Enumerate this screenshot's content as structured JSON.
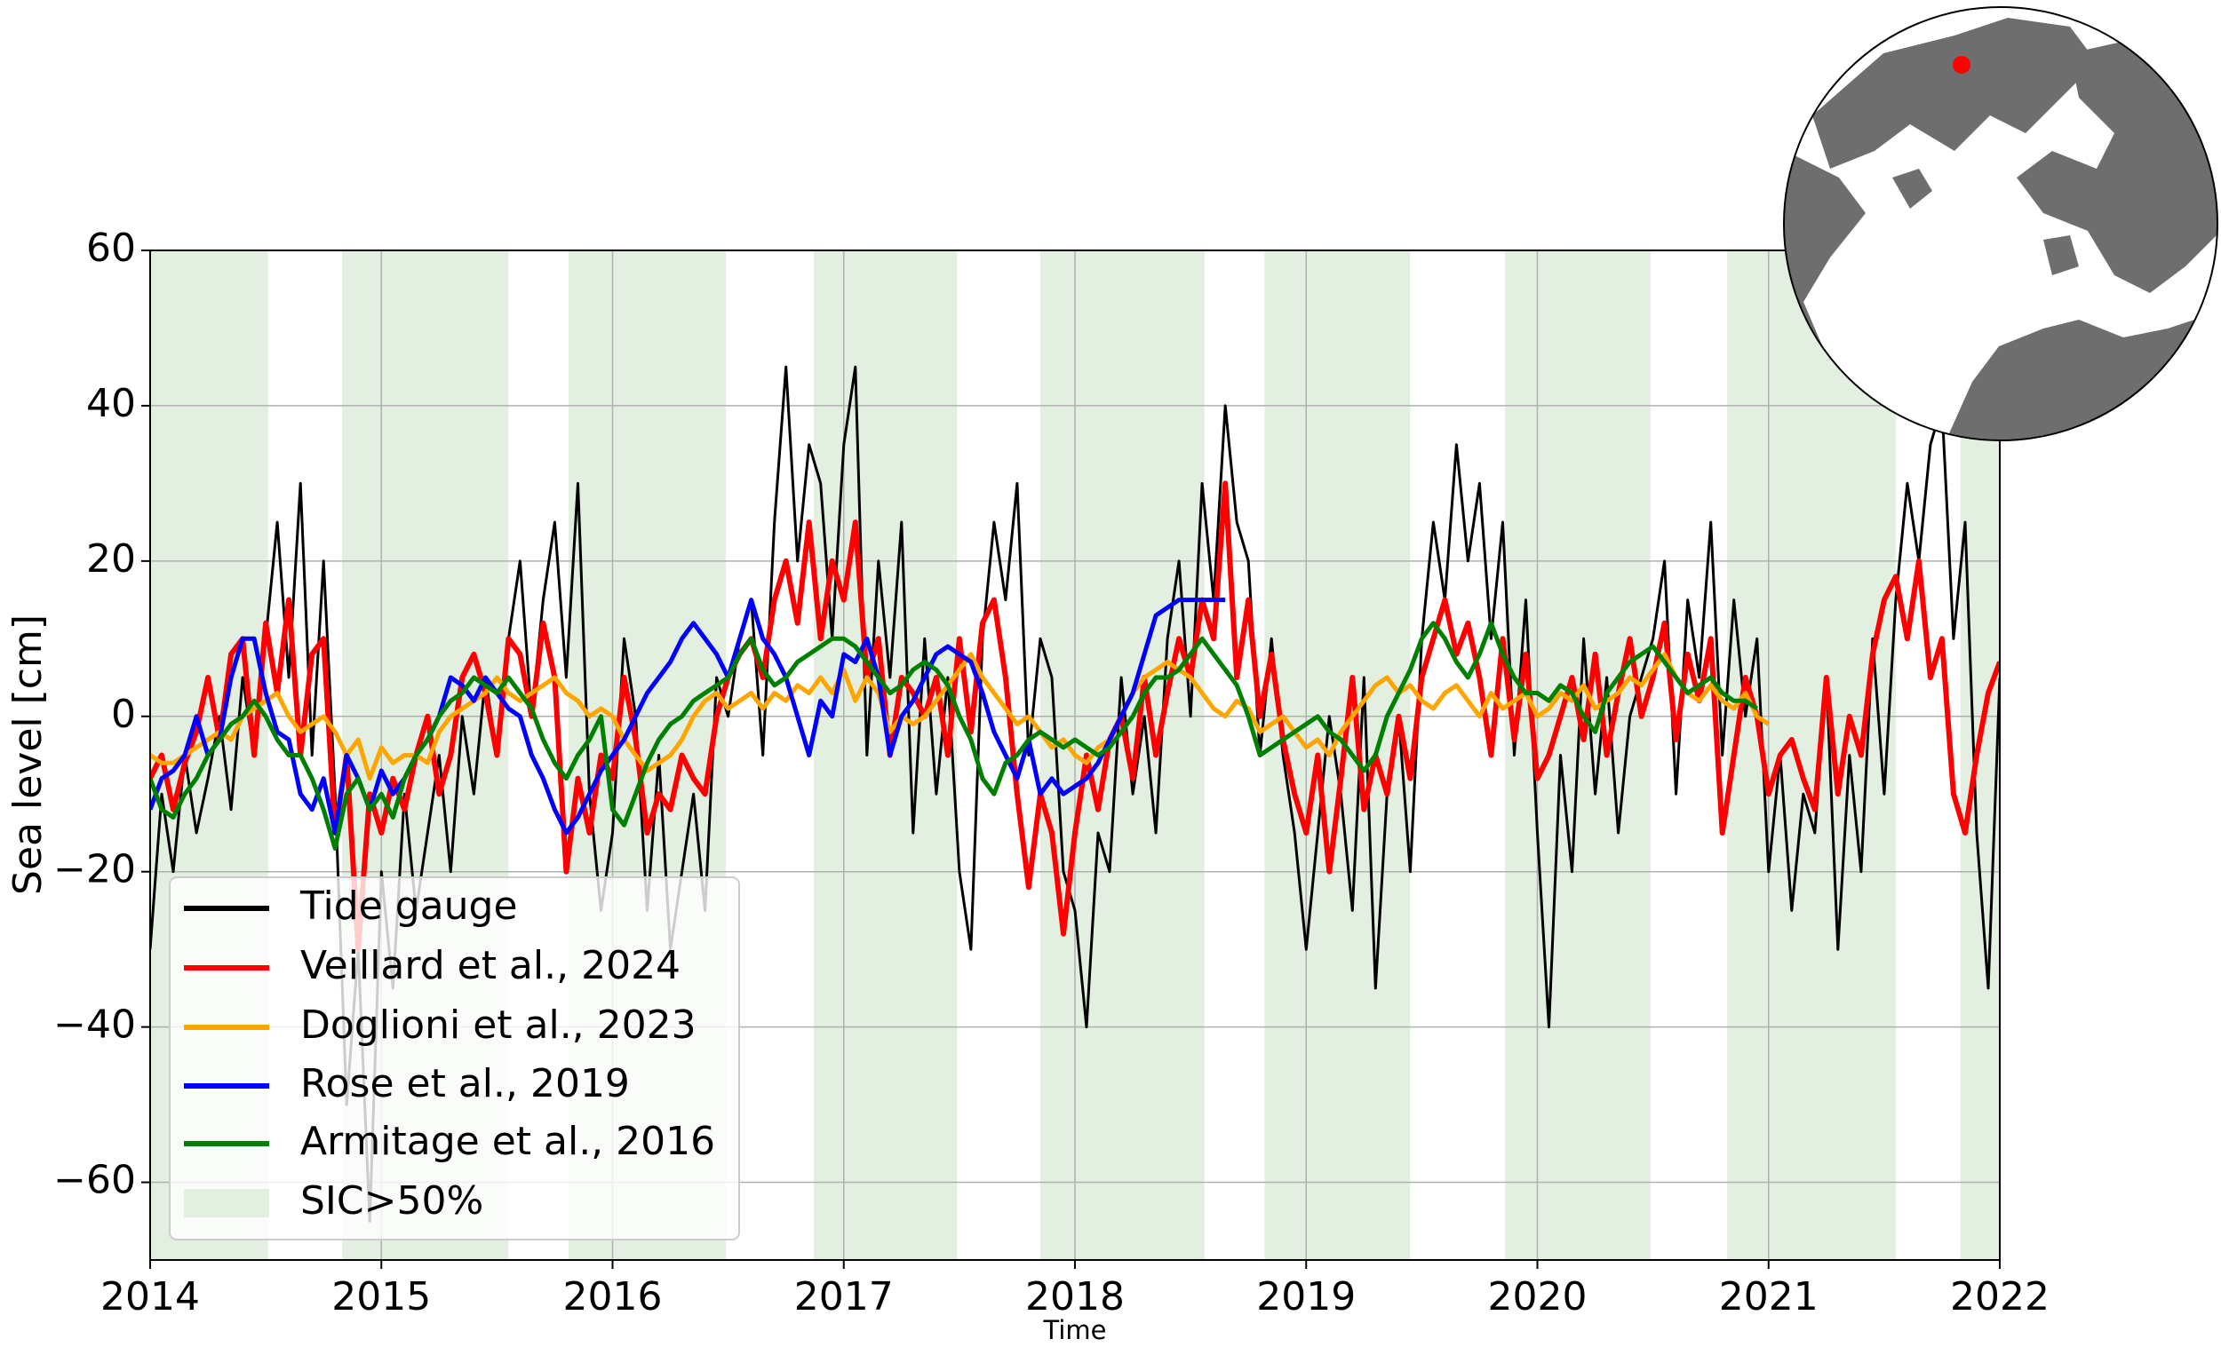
{
  "chart_data": {
    "type": "line",
    "xlabel": "Time",
    "ylabel": "Sea level [cm]",
    "xlim": [
      2014,
      2022
    ],
    "xticks": [
      2014,
      2015,
      2016,
      2017,
      2018,
      2019,
      2020,
      2021,
      2022
    ],
    "ylim": [
      -70,
      60
    ],
    "yticks": [
      {
        "value": -60,
        "label": "−60"
      },
      {
        "value": -40,
        "label": "−40"
      },
      {
        "value": -20,
        "label": "−20"
      },
      0,
      20,
      40,
      60
    ],
    "grid": true,
    "legend": "lower left",
    "shading": {
      "name": "SIC>50%",
      "color": "#e3efe0",
      "spans": [
        [
          2014,
          2014.51
        ],
        [
          2014.83,
          2015.55
        ],
        [
          2015.81,
          2016.49
        ],
        [
          2016.87,
          2017.49
        ],
        [
          2017.85,
          2018.56
        ],
        [
          2018.82,
          2019.45
        ],
        [
          2019.86,
          2020.49
        ],
        [
          2020.82,
          2021.55
        ],
        [
          2021.83,
          2022
        ]
      ]
    },
    "x": [
      2014,
      2014.05,
      2014.1,
      2014.15,
      2014.2,
      2014.25,
      2014.3,
      2014.35,
      2014.4,
      2014.45,
      2014.5,
      2014.55,
      2014.6,
      2014.65,
      2014.7,
      2014.75,
      2014.8,
      2014.85,
      2014.9,
      2014.95,
      2015,
      2015.05,
      2015.1,
      2015.15,
      2015.2,
      2015.25,
      2015.3,
      2015.35,
      2015.4,
      2015.45,
      2015.5,
      2015.55,
      2015.6,
      2015.65,
      2015.7,
      2015.75,
      2015.8,
      2015.85,
      2015.9,
      2015.95,
      2016,
      2016.05,
      2016.1,
      2016.15,
      2016.2,
      2016.25,
      2016.3,
      2016.35,
      2016.4,
      2016.45,
      2016.5,
      2016.55,
      2016.6,
      2016.65,
      2016.7,
      2016.75,
      2016.8,
      2016.85,
      2016.9,
      2016.95,
      2017,
      2017.05,
      2017.1,
      2017.15,
      2017.2,
      2017.25,
      2017.3,
      2017.35,
      2017.4,
      2017.45,
      2017.5,
      2017.55,
      2017.6,
      2017.65,
      2017.7,
      2017.75,
      2017.8,
      2017.85,
      2017.9,
      2017.95,
      2018,
      2018.05,
      2018.1,
      2018.15,
      2018.2,
      2018.25,
      2018.3,
      2018.35,
      2018.4,
      2018.45,
      2018.5,
      2018.55,
      2018.6,
      2018.65,
      2018.7,
      2018.75,
      2018.8,
      2018.85,
      2018.9,
      2018.95,
      2019,
      2019.05,
      2019.1,
      2019.15,
      2019.2,
      2019.25,
      2019.3,
      2019.35,
      2019.4,
      2019.45,
      2019.5,
      2019.55,
      2019.6,
      2019.65,
      2019.7,
      2019.75,
      2019.8,
      2019.85,
      2019.9,
      2019.95,
      2020,
      2020.05,
      2020.1,
      2020.15,
      2020.2,
      2020.25,
      2020.3,
      2020.35,
      2020.4,
      2020.45,
      2020.5,
      2020.55,
      2020.6,
      2020.65,
      2020.7,
      2020.75,
      2020.8,
      2020.85,
      2020.9,
      2020.95,
      2021,
      2021.05,
      2021.1,
      2021.15,
      2021.2,
      2021.25,
      2021.3,
      2021.35,
      2021.4,
      2021.45,
      2021.5,
      2021.55,
      2021.6,
      2021.65,
      2021.7,
      2021.75,
      2021.8,
      2021.85,
      2021.9,
      2021.95,
      2022
    ],
    "series": [
      {
        "name": "Tide gauge",
        "color": "#000000",
        "values": [
          -30,
          -10,
          -20,
          -5,
          -15,
          -8,
          0,
          -12,
          5,
          -5,
          10,
          25,
          5,
          30,
          -5,
          20,
          -10,
          -50,
          -30,
          -65,
          -20,
          -35,
          -10,
          -25,
          -15,
          -5,
          -20,
          0,
          -10,
          5,
          -5,
          10,
          20,
          0,
          15,
          25,
          5,
          30,
          -10,
          -25,
          -15,
          10,
          0,
          -25,
          -5,
          -30,
          -20,
          -10,
          -25,
          5,
          0,
          10,
          15,
          -5,
          25,
          45,
          20,
          35,
          30,
          10,
          35,
          45,
          -5,
          20,
          5,
          25,
          -15,
          10,
          -10,
          5,
          -20,
          -30,
          10,
          25,
          15,
          30,
          -5,
          10,
          5,
          -20,
          -25,
          -40,
          -15,
          -20,
          5,
          -10,
          0,
          -15,
          10,
          20,
          0,
          30,
          15,
          40,
          25,
          20,
          -5,
          10,
          -5,
          -15,
          -30,
          -15,
          0,
          -10,
          -25,
          5,
          -35,
          -10,
          0,
          -20,
          10,
          25,
          15,
          35,
          20,
          30,
          10,
          25,
          -5,
          15,
          -15,
          -40,
          -5,
          -20,
          10,
          -10,
          5,
          -15,
          0,
          5,
          10,
          20,
          -10,
          15,
          5,
          25,
          -5,
          15,
          0,
          10,
          -20,
          -5,
          -25,
          -10,
          -15,
          5,
          -30,
          -5,
          -20,
          10,
          -10,
          15,
          30,
          20,
          35,
          40,
          10,
          25,
          -15,
          -35,
          5
        ]
      },
      {
        "name": "Veillard et al., 2024",
        "color": "#ff0000",
        "values": [
          -8,
          -5,
          -12,
          -6,
          -2,
          5,
          -3,
          8,
          10,
          -5,
          12,
          3,
          15,
          -5,
          8,
          10,
          -15,
          -5,
          -30,
          -10,
          -15,
          -8,
          -12,
          -5,
          0,
          -10,
          -5,
          5,
          8,
          3,
          -5,
          10,
          8,
          0,
          12,
          5,
          -20,
          -8,
          -15,
          -5,
          -8,
          5,
          -3,
          -15,
          -10,
          -12,
          -5,
          -8,
          -10,
          0,
          5,
          8,
          10,
          5,
          15,
          20,
          12,
          25,
          10,
          20,
          15,
          25,
          5,
          10,
          -5,
          5,
          3,
          0,
          5,
          -5,
          10,
          -2,
          12,
          15,
          5,
          -10,
          -22,
          -10,
          -15,
          -28,
          -15,
          -5,
          -12,
          -3,
          0,
          -8,
          5,
          -5,
          3,
          10,
          5,
          15,
          10,
          30,
          5,
          15,
          0,
          8,
          -3,
          -10,
          -15,
          -5,
          -20,
          -8,
          5,
          -12,
          -5,
          -10,
          0,
          -8,
          5,
          10,
          15,
          8,
          12,
          5,
          -5,
          10,
          -3,
          8,
          -8,
          -5,
          0,
          5,
          -3,
          8,
          -5,
          3,
          10,
          0,
          5,
          12,
          -3,
          8,
          2,
          10,
          -15,
          -5,
          5,
          0,
          -10,
          -5,
          -3,
          -8,
          -12,
          5,
          -10,
          0,
          -5,
          8,
          15,
          18,
          10,
          20,
          5,
          10,
          -10,
          -15,
          -5,
          3,
          7
        ]
      },
      {
        "name": "Doglioni et al., 2023",
        "color": "#ffa500",
        "values": [
          -5,
          -6,
          -6,
          -5,
          -4,
          -3,
          -2,
          -3,
          0,
          1,
          2,
          3,
          0,
          -2,
          -1,
          0,
          -2,
          -5,
          -3,
          -8,
          -4,
          -6,
          -5,
          -5,
          -6,
          -2,
          0,
          1,
          2,
          3,
          5,
          3,
          2,
          3,
          4,
          5,
          3,
          2,
          0,
          1,
          0,
          -3,
          -5,
          -7,
          -6,
          -5,
          -3,
          0,
          2,
          3,
          1,
          2,
          3,
          1,
          3,
          2,
          4,
          3,
          5,
          3,
          6,
          2,
          5,
          3,
          -2,
          0,
          -1,
          0,
          2,
          4,
          6,
          8,
          5,
          3,
          1,
          -1,
          0,
          -2,
          -4,
          -3,
          -5,
          -6,
          -4,
          -3,
          0,
          3,
          5,
          6,
          7,
          6,
          5,
          3,
          1,
          0,
          2,
          1,
          -2,
          -1,
          0,
          -2,
          -4,
          -3,
          -5,
          -2,
          0,
          2,
          4,
          5,
          3,
          4,
          2,
          1,
          3,
          4,
          2,
          0,
          3,
          1,
          2,
          3,
          0,
          1,
          3,
          2,
          4,
          1,
          2,
          3,
          5,
          4,
          6,
          8,
          5,
          3,
          2,
          4,
          2,
          1,
          3,
          0,
          -1,
          null,
          null,
          null,
          null,
          null,
          null,
          null,
          null,
          null,
          null,
          null,
          null,
          null,
          null,
          null,
          null,
          null,
          null,
          null,
          null
        ]
      },
      {
        "name": "Rose et al., 2019",
        "color": "#0000ff",
        "values": [
          -12,
          -8,
          -7,
          -5,
          0,
          -5,
          -3,
          5,
          10,
          10,
          3,
          -2,
          -3,
          -10,
          -12,
          -8,
          -15,
          -5,
          -8,
          -12,
          -7,
          -10,
          -8,
          -5,
          -3,
          0,
          5,
          4,
          2,
          5,
          3,
          1,
          0,
          -5,
          -8,
          -12,
          -15,
          -13,
          -10,
          -7,
          -5,
          -3,
          0,
          3,
          5,
          7,
          10,
          12,
          10,
          8,
          5,
          10,
          15,
          10,
          8,
          5,
          0,
          -5,
          2,
          0,
          8,
          7,
          10,
          5,
          -5,
          0,
          2,
          5,
          8,
          9,
          8,
          7,
          3,
          -2,
          -5,
          -8,
          -3,
          -10,
          -8,
          -10,
          -9,
          -8,
          -6,
          -3,
          0,
          3,
          8,
          13,
          14,
          15,
          15,
          15,
          15,
          15,
          null,
          null,
          null,
          null,
          null,
          null,
          null,
          null,
          null,
          null,
          null,
          null,
          null,
          null,
          null,
          null,
          null,
          null,
          null,
          null,
          null,
          null,
          null,
          null,
          null,
          null,
          null,
          null,
          null,
          null,
          null,
          null,
          null,
          null,
          null,
          null,
          null,
          null,
          null,
          null,
          null,
          null,
          null,
          null,
          null,
          null,
          null,
          null,
          null,
          null,
          null,
          null,
          null,
          null,
          null,
          null,
          null,
          null,
          null,
          null,
          null,
          null,
          null,
          null,
          null,
          null,
          null
        ]
      },
      {
        "name": "Armitage et al., 2016",
        "color": "#008000",
        "values": [
          -8,
          -12,
          -13,
          -10,
          -8,
          -5,
          -3,
          -1,
          0,
          2,
          0,
          -3,
          -5,
          -5,
          -8,
          -12,
          -17,
          -10,
          -8,
          -12,
          -10,
          -13,
          -8,
          -5,
          -3,
          0,
          2,
          3,
          5,
          4,
          3,
          5,
          3,
          1,
          -3,
          -6,
          -8,
          -5,
          -3,
          0,
          -12,
          -14,
          -10,
          -6,
          -3,
          -1,
          0,
          2,
          3,
          4,
          5,
          8,
          10,
          6,
          4,
          5,
          7,
          8,
          9,
          10,
          10,
          9,
          7,
          5,
          3,
          4,
          6,
          7,
          6,
          4,
          0,
          -3,
          -8,
          -10,
          -6,
          -5,
          -3,
          -2,
          -3,
          -4,
          -3,
          -4,
          -5,
          -4,
          -2,
          0,
          3,
          5,
          5,
          6,
          8,
          10,
          8,
          6,
          4,
          0,
          -5,
          -4,
          -3,
          -2,
          -1,
          0,
          -2,
          -3,
          -5,
          -7,
          -5,
          0,
          3,
          6,
          10,
          12,
          10,
          7,
          5,
          8,
          12,
          8,
          5,
          3,
          3,
          2,
          4,
          3,
          0,
          -2,
          3,
          5,
          7,
          8,
          9,
          7,
          5,
          3,
          4,
          5,
          3,
          2,
          2,
          1,
          null,
          null,
          null,
          null,
          null,
          null,
          null,
          null,
          null,
          null,
          null,
          null,
          null,
          null,
          null,
          null,
          null,
          null,
          null,
          null,
          null
        ]
      }
    ]
  }
}
